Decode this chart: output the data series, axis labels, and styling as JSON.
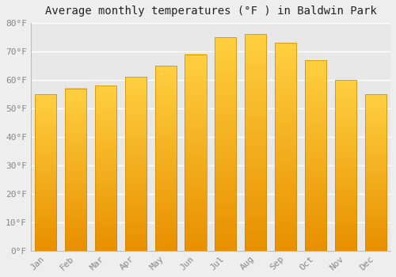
{
  "title": "Average monthly temperatures (°F ) in Baldwin Park",
  "months": [
    "Jan",
    "Feb",
    "Mar",
    "Apr",
    "May",
    "Jun",
    "Jul",
    "Aug",
    "Sep",
    "Oct",
    "Nov",
    "Dec"
  ],
  "values": [
    55,
    57,
    58,
    61,
    65,
    69,
    75,
    76,
    73,
    67,
    60,
    55
  ],
  "bar_color_bright": "#FFD040",
  "bar_color_dark": "#E89000",
  "bar_edge_color": "#CC8800",
  "ylim": [
    0,
    80
  ],
  "yticks": [
    0,
    10,
    20,
    30,
    40,
    50,
    60,
    70,
    80
  ],
  "ytick_labels": [
    "0°F",
    "10°F",
    "20°F",
    "30°F",
    "40°F",
    "50°F",
    "60°F",
    "70°F",
    "80°F"
  ],
  "background_color": "#EEEEEE",
  "plot_bg_color": "#E8E8E8",
  "grid_color": "#FFFFFF",
  "title_fontsize": 10,
  "tick_fontsize": 8,
  "tick_color": "#888888",
  "title_color": "#222222"
}
